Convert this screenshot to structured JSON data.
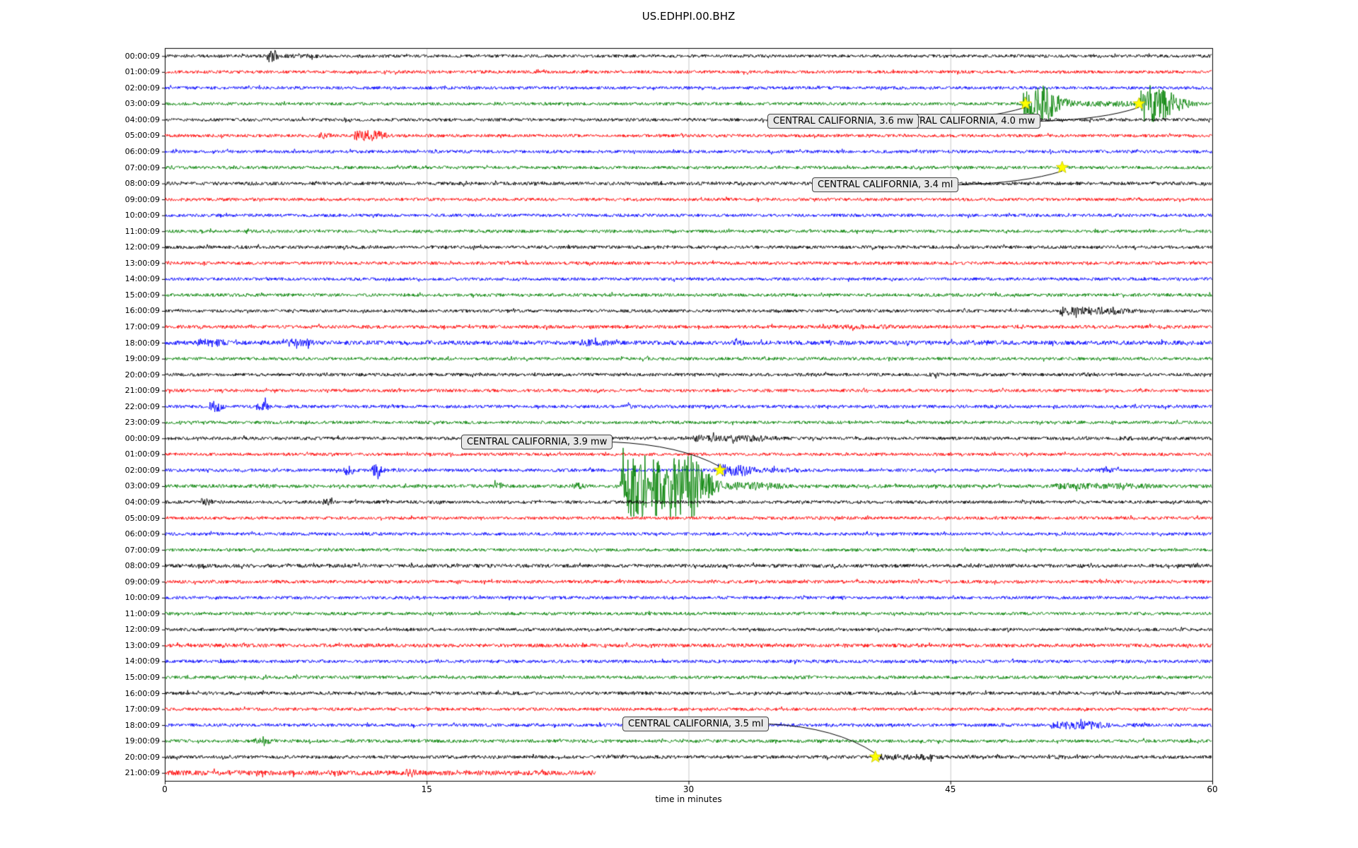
{
  "title": "US.EDHPI.00.BHZ",
  "chart_data": {
    "type": "line",
    "subtype": "helicorder-dayplot",
    "title": "US.EDHPI.00.BHZ",
    "xlabel": "time in minutes",
    "xlim": [
      0,
      60
    ],
    "x_ticks": [
      0,
      15,
      30,
      45,
      60
    ],
    "grid": "vertical-only",
    "grid_color": "#c8c8c8",
    "trace_color_cycle": [
      "#000000",
      "#ff0000",
      "#0000ff",
      "#008000"
    ],
    "event_marker": "yellow-star",
    "event_marker_color": "#ffff00",
    "rows": [
      {
        "label": "00:00:09",
        "color": "#000000",
        "amp": 2.2,
        "bursts": [
          [
            5.9,
            6.3,
            9
          ],
          [
            6.5,
            8.8,
            3
          ]
        ]
      },
      {
        "label": "01:00:09",
        "color": "#ff0000",
        "amp": 2.2,
        "bursts": []
      },
      {
        "label": "02:00:09",
        "color": "#0000ff",
        "amp": 2.2,
        "bursts": []
      },
      {
        "label": "03:00:09",
        "color": "#008000",
        "amp": 2.2,
        "bursts": [
          [
            49.2,
            50.5,
            26
          ],
          [
            50.5,
            55,
            4
          ],
          [
            55.9,
            57.2,
            28
          ]
        ]
      },
      {
        "label": "04:00:09",
        "color": "#000000",
        "amp": 2.2,
        "bursts": [
          [
            10.3,
            10.6,
            4
          ]
        ]
      },
      {
        "label": "05:00:09",
        "color": "#ff0000",
        "amp": 2.2,
        "bursts": [
          [
            8.9,
            9.4,
            5
          ],
          [
            10.9,
            12.1,
            8
          ]
        ]
      },
      {
        "label": "06:00:09",
        "color": "#0000ff",
        "amp": 2.2,
        "bursts": []
      },
      {
        "label": "07:00:09",
        "color": "#008000",
        "amp": 2.2,
        "bursts": [
          [
            51.3,
            51.7,
            3
          ]
        ]
      },
      {
        "label": "08:00:09",
        "color": "#000000",
        "amp": 2.5,
        "bursts": []
      },
      {
        "label": "09:00:09",
        "color": "#ff0000",
        "amp": 2.2,
        "bursts": []
      },
      {
        "label": "10:00:09",
        "color": "#0000ff",
        "amp": 2.2,
        "bursts": []
      },
      {
        "label": "11:00:09",
        "color": "#008000",
        "amp": 2.2,
        "bursts": []
      },
      {
        "label": "12:00:09",
        "color": "#000000",
        "amp": 2.3,
        "bursts": []
      },
      {
        "label": "13:00:09",
        "color": "#ff0000",
        "amp": 2.3,
        "bursts": []
      },
      {
        "label": "14:00:09",
        "color": "#0000ff",
        "amp": 2.2,
        "bursts": []
      },
      {
        "label": "15:00:09",
        "color": "#008000",
        "amp": 2.3,
        "bursts": []
      },
      {
        "label": "16:00:09",
        "color": "#000000",
        "amp": 2.2,
        "bursts": [
          [
            51.3,
            54.3,
            6
          ]
        ]
      },
      {
        "label": "17:00:09",
        "color": "#ff0000",
        "amp": 2.4,
        "bursts": [
          [
            37.5,
            41.5,
            3.2
          ]
        ]
      },
      {
        "label": "18:00:09",
        "color": "#0000ff",
        "amp": 3.0,
        "bursts": [
          [
            1.8,
            3.2,
            6
          ],
          [
            6.8,
            8.2,
            6
          ],
          [
            14.8,
            15.3,
            4
          ],
          [
            23.8,
            25.2,
            5
          ],
          [
            32.5,
            33.2,
            4
          ],
          [
            38.8,
            39.3,
            3.5
          ],
          [
            46.8,
            48.2,
            3.5
          ]
        ]
      },
      {
        "label": "19:00:09",
        "color": "#008000",
        "amp": 2.2,
        "bursts": []
      },
      {
        "label": "20:00:09",
        "color": "#000000",
        "amp": 2.3,
        "bursts": [
          [
            43.5,
            44.2,
            3
          ],
          [
            52.5,
            53.5,
            3
          ]
        ]
      },
      {
        "label": "21:00:09",
        "color": "#ff0000",
        "amp": 2.2,
        "bursts": []
      },
      {
        "label": "22:00:09",
        "color": "#0000ff",
        "amp": 2.3,
        "bursts": [
          [
            2.6,
            3.1,
            8
          ],
          [
            5.3,
            5.8,
            7
          ],
          [
            26.3,
            26.7,
            3.5
          ]
        ]
      },
      {
        "label": "23:00:09",
        "color": "#008000",
        "amp": 2.2,
        "bursts": []
      },
      {
        "label": "00:00:09",
        "color": "#000000",
        "amp": 2.3,
        "bursts": [
          [
            25.3,
            25.7,
            4
          ],
          [
            30.3,
            33.8,
            5
          ],
          [
            54.5,
            55.5,
            3
          ]
        ]
      },
      {
        "label": "01:00:09",
        "color": "#ff0000",
        "amp": 2.2,
        "bursts": []
      },
      {
        "label": "02:00:09",
        "color": "#0000ff",
        "amp": 2.3,
        "bursts": [
          [
            10.3,
            10.7,
            7
          ],
          [
            11.9,
            12.3,
            9
          ],
          [
            31.7,
            33.2,
            9
          ],
          [
            33.2,
            36,
            3.5
          ],
          [
            53.5,
            54.5,
            3.5
          ]
        ]
      },
      {
        "label": "03:00:09",
        "color": "#008000",
        "amp": 2.5,
        "bursts": [
          [
            18.8,
            19.3,
            5
          ],
          [
            23.3,
            23.9,
            5
          ],
          [
            26.2,
            28.1,
            46
          ],
          [
            28.9,
            30.3,
            46
          ],
          [
            30.8,
            31.6,
            14
          ],
          [
            31.6,
            34.5,
            6
          ],
          [
            51,
            55.5,
            4.5
          ]
        ]
      },
      {
        "label": "04:00:09",
        "color": "#000000",
        "amp": 2.3,
        "bursts": [
          [
            2.1,
            2.5,
            6
          ],
          [
            9.1,
            9.5,
            5
          ]
        ]
      },
      {
        "label": "05:00:09",
        "color": "#ff0000",
        "amp": 2.2,
        "bursts": []
      },
      {
        "label": "06:00:09",
        "color": "#0000ff",
        "amp": 2.2,
        "bursts": []
      },
      {
        "label": "07:00:09",
        "color": "#008000",
        "amp": 2.2,
        "bursts": []
      },
      {
        "label": "08:00:09",
        "color": "#000000",
        "amp": 2.6,
        "bursts": []
      },
      {
        "label": "09:00:09",
        "color": "#ff0000",
        "amp": 2.4,
        "bursts": []
      },
      {
        "label": "10:00:09",
        "color": "#0000ff",
        "amp": 2.2,
        "bursts": []
      },
      {
        "label": "11:00:09",
        "color": "#008000",
        "amp": 2.2,
        "bursts": []
      },
      {
        "label": "12:00:09",
        "color": "#000000",
        "amp": 2.2,
        "bursts": []
      },
      {
        "label": "13:00:09",
        "color": "#ff0000",
        "amp": 2.6,
        "bursts": []
      },
      {
        "label": "14:00:09",
        "color": "#0000ff",
        "amp": 2.3,
        "bursts": []
      },
      {
        "label": "15:00:09",
        "color": "#008000",
        "amp": 2.3,
        "bursts": []
      },
      {
        "label": "16:00:09",
        "color": "#000000",
        "amp": 2.4,
        "bursts": []
      },
      {
        "label": "17:00:09",
        "color": "#ff0000",
        "amp": 2.2,
        "bursts": []
      },
      {
        "label": "18:00:09",
        "color": "#0000ff",
        "amp": 2.3,
        "bursts": [
          [
            50.8,
            53.2,
            6
          ],
          [
            55.5,
            56,
            3
          ]
        ]
      },
      {
        "label": "19:00:09",
        "color": "#008000",
        "amp": 2.3,
        "bursts": [
          [
            5.1,
            6,
            4
          ]
        ]
      },
      {
        "label": "20:00:09",
        "color": "#000000",
        "amp": 2.4,
        "bursts": [
          [
            40.9,
            43.6,
            4.5
          ],
          [
            46,
            46.4,
            3
          ],
          [
            50.6,
            51.2,
            3.5
          ]
        ]
      },
      {
        "label": "21:00:09",
        "color": "#ff0000",
        "amp": 3.5,
        "end": 24.7,
        "bursts": [
          [
            13.8,
            14.3,
            6
          ]
        ]
      }
    ],
    "events": [
      {
        "label": "CENTRAL CALIFORNIA, 3.6 mw",
        "row": 3,
        "minute": 49.3
      },
      {
        "label": "CENTRAL CALIFORNIA, 4.0 mw",
        "row": 3,
        "minute": 55.8
      },
      {
        "label": "CENTRAL CALIFORNIA, 3.4 ml",
        "row": 7,
        "minute": 51.4
      },
      {
        "label": "CENTRAL CALIFORNIA, 3.9 mw",
        "row": 26,
        "minute": 31.8
      },
      {
        "label": "CENTRAL CALIFORNIA, 3.5 ml",
        "row": 44,
        "minute": 40.7
      }
    ]
  }
}
